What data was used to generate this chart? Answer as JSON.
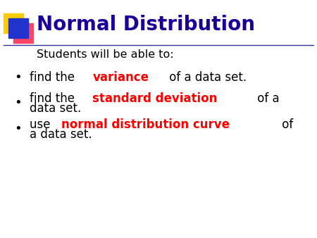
{
  "title": "Normal Distribution",
  "title_color": "#1a0099",
  "subtitle": "Students will be able to:",
  "background_color": "#ffffff",
  "divider_color": "#333399",
  "sq_yellow": "#ffcc00",
  "sq_pink": "#ff4466",
  "sq_blue": "#2233cc",
  "bullet1_line1": [
    [
      "find the ",
      "#000000",
      false
    ],
    [
      "variance",
      "#ff0000",
      true
    ],
    [
      " of a data set.",
      "#000000",
      false
    ]
  ],
  "bullet2_line1": [
    [
      "find the ",
      "#000000",
      false
    ],
    [
      "standard deviation",
      "#ff0000",
      true
    ],
    [
      " of a",
      "#000000",
      false
    ]
  ],
  "bullet2_line2": "data set.",
  "bullet3_line1": [
    [
      "use ",
      "#000000",
      false
    ],
    [
      "normal distribution curve",
      "#ff0000",
      true
    ],
    [
      " of",
      "#000000",
      false
    ]
  ],
  "bullet3_line2": "a data set."
}
